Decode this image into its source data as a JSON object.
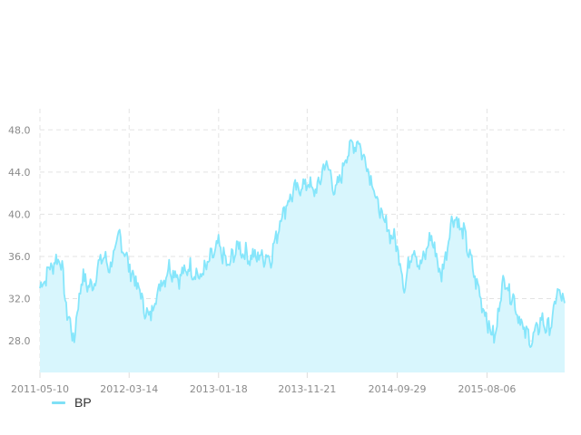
{
  "chart_data": {
    "type": "area",
    "title": "",
    "xlabel": "",
    "ylabel": "",
    "ylim": [
      25.0,
      50.0
    ],
    "y_ticks": [
      "28.0",
      "32.0",
      "36.0",
      "40.0",
      "44.0",
      "48.0"
    ],
    "x_tick_labels": [
      "2011-05-10",
      "2012-03-14",
      "2013-01-18",
      "2013-11-21",
      "2014-09-29",
      "2015-08-06"
    ],
    "grid": true,
    "legend_position": "bottom-left",
    "colors": {
      "line": "#86e6fb",
      "fill": "#d8f6fd",
      "grid": "#e3e3e3"
    },
    "series": [
      {
        "name": "BP",
        "x": [
          "2011-05-10",
          "2011-06-15",
          "2011-07-20",
          "2011-08-10",
          "2011-09-05",
          "2011-10-01",
          "2011-11-05",
          "2011-12-10",
          "2012-01-10",
          "2012-02-10",
          "2012-03-14",
          "2012-04-15",
          "2012-05-20",
          "2012-06-25",
          "2012-08-01",
          "2012-09-05",
          "2012-10-10",
          "2012-11-15",
          "2013-01-18",
          "2013-02-20",
          "2013-03-25",
          "2013-05-01",
          "2013-06-10",
          "2013-07-20",
          "2013-08-25",
          "2013-10-01",
          "2013-11-21",
          "2013-12-20",
          "2014-01-25",
          "2014-03-01",
          "2014-04-10",
          "2014-05-15",
          "2014-06-25",
          "2014-08-01",
          "2014-09-29",
          "2014-10-25",
          "2014-11-20",
          "2014-12-20",
          "2015-01-25",
          "2015-03-01",
          "2015-04-10",
          "2015-05-20",
          "2015-06-25",
          "2015-08-06",
          "2015-09-01",
          "2015-10-01",
          "2015-11-05",
          "2015-12-10",
          "2016-01-10",
          "2016-02-10",
          "2016-03-10",
          "2016-04-10",
          "2016-05-01"
        ],
        "values": [
          33.0,
          35.0,
          36.0,
          31.0,
          28.0,
          34.0,
          33.0,
          36.0,
          35.0,
          38.0,
          35.0,
          33.0,
          30.0,
          33.0,
          35.0,
          34.0,
          35.0,
          34.0,
          37.0,
          35.0,
          37.0,
          36.0,
          36.0,
          36.0,
          40.0,
          42.0,
          43.0,
          42.0,
          45.0,
          42.0,
          46.0,
          47.0,
          44.0,
          40.0,
          37.0,
          33.0,
          37.0,
          35.0,
          38.0,
          34.0,
          40.0,
          38.0,
          34.0,
          30.0,
          28.0,
          34.0,
          32.0,
          29.0,
          28.0,
          30.0,
          29.0,
          33.0,
          31.0
        ]
      }
    ]
  }
}
